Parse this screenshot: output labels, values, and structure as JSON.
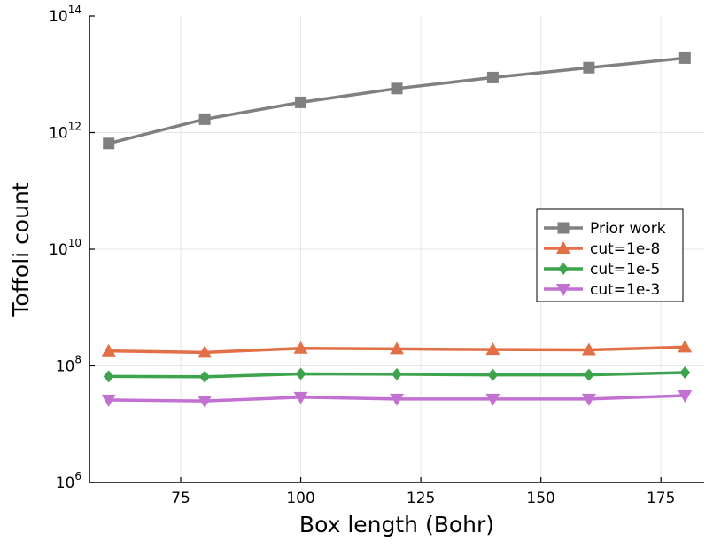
{
  "chart_data": {
    "type": "line",
    "xlabel": "Box length (Bohr)",
    "ylabel": "Toffoli count",
    "yscale": "log",
    "xlim": [
      56,
      184
    ],
    "ylim": [
      1000000,
      100000000000000
    ],
    "x_ticks": [
      75,
      100,
      125,
      150,
      175
    ],
    "y_ticks": [
      {
        "base": "10",
        "exp": "6",
        "value": 1000000
      },
      {
        "base": "10",
        "exp": "8",
        "value": 100000000
      },
      {
        "base": "10",
        "exp": "10",
        "value": 10000000000
      },
      {
        "base": "10",
        "exp": "12",
        "value": 1000000000000
      },
      {
        "base": "10",
        "exp": "14",
        "value": 100000000000000
      }
    ],
    "grid": true,
    "legend_position": "right",
    "x": [
      60,
      80,
      100,
      120,
      140,
      160,
      180
    ],
    "series": [
      {
        "name": "Prior work",
        "color": "#808080",
        "marker": "square",
        "values": [
          650000000000,
          1700000000000,
          3300000000000,
          5700000000000,
          8800000000000,
          13000000000000,
          19000000000000
        ]
      },
      {
        "name": "cut=1e-8",
        "color": "#e26f46",
        "marker": "triangle-up",
        "values": [
          180000000,
          170000000,
          200000000,
          195000000,
          190000000,
          188000000,
          210000000
        ]
      },
      {
        "name": "cut=1e-5",
        "color": "#3da44d",
        "marker": "diamond",
        "values": [
          66000000,
          65000000,
          73000000,
          72000000,
          70000000,
          70000000,
          77000000
        ]
      },
      {
        "name": "cut=1e-3",
        "color": "#c271d2",
        "marker": "triangle-down",
        "values": [
          26000000,
          25000000,
          29000000,
          27000000,
          27000000,
          27000000,
          31000000
        ]
      }
    ]
  }
}
